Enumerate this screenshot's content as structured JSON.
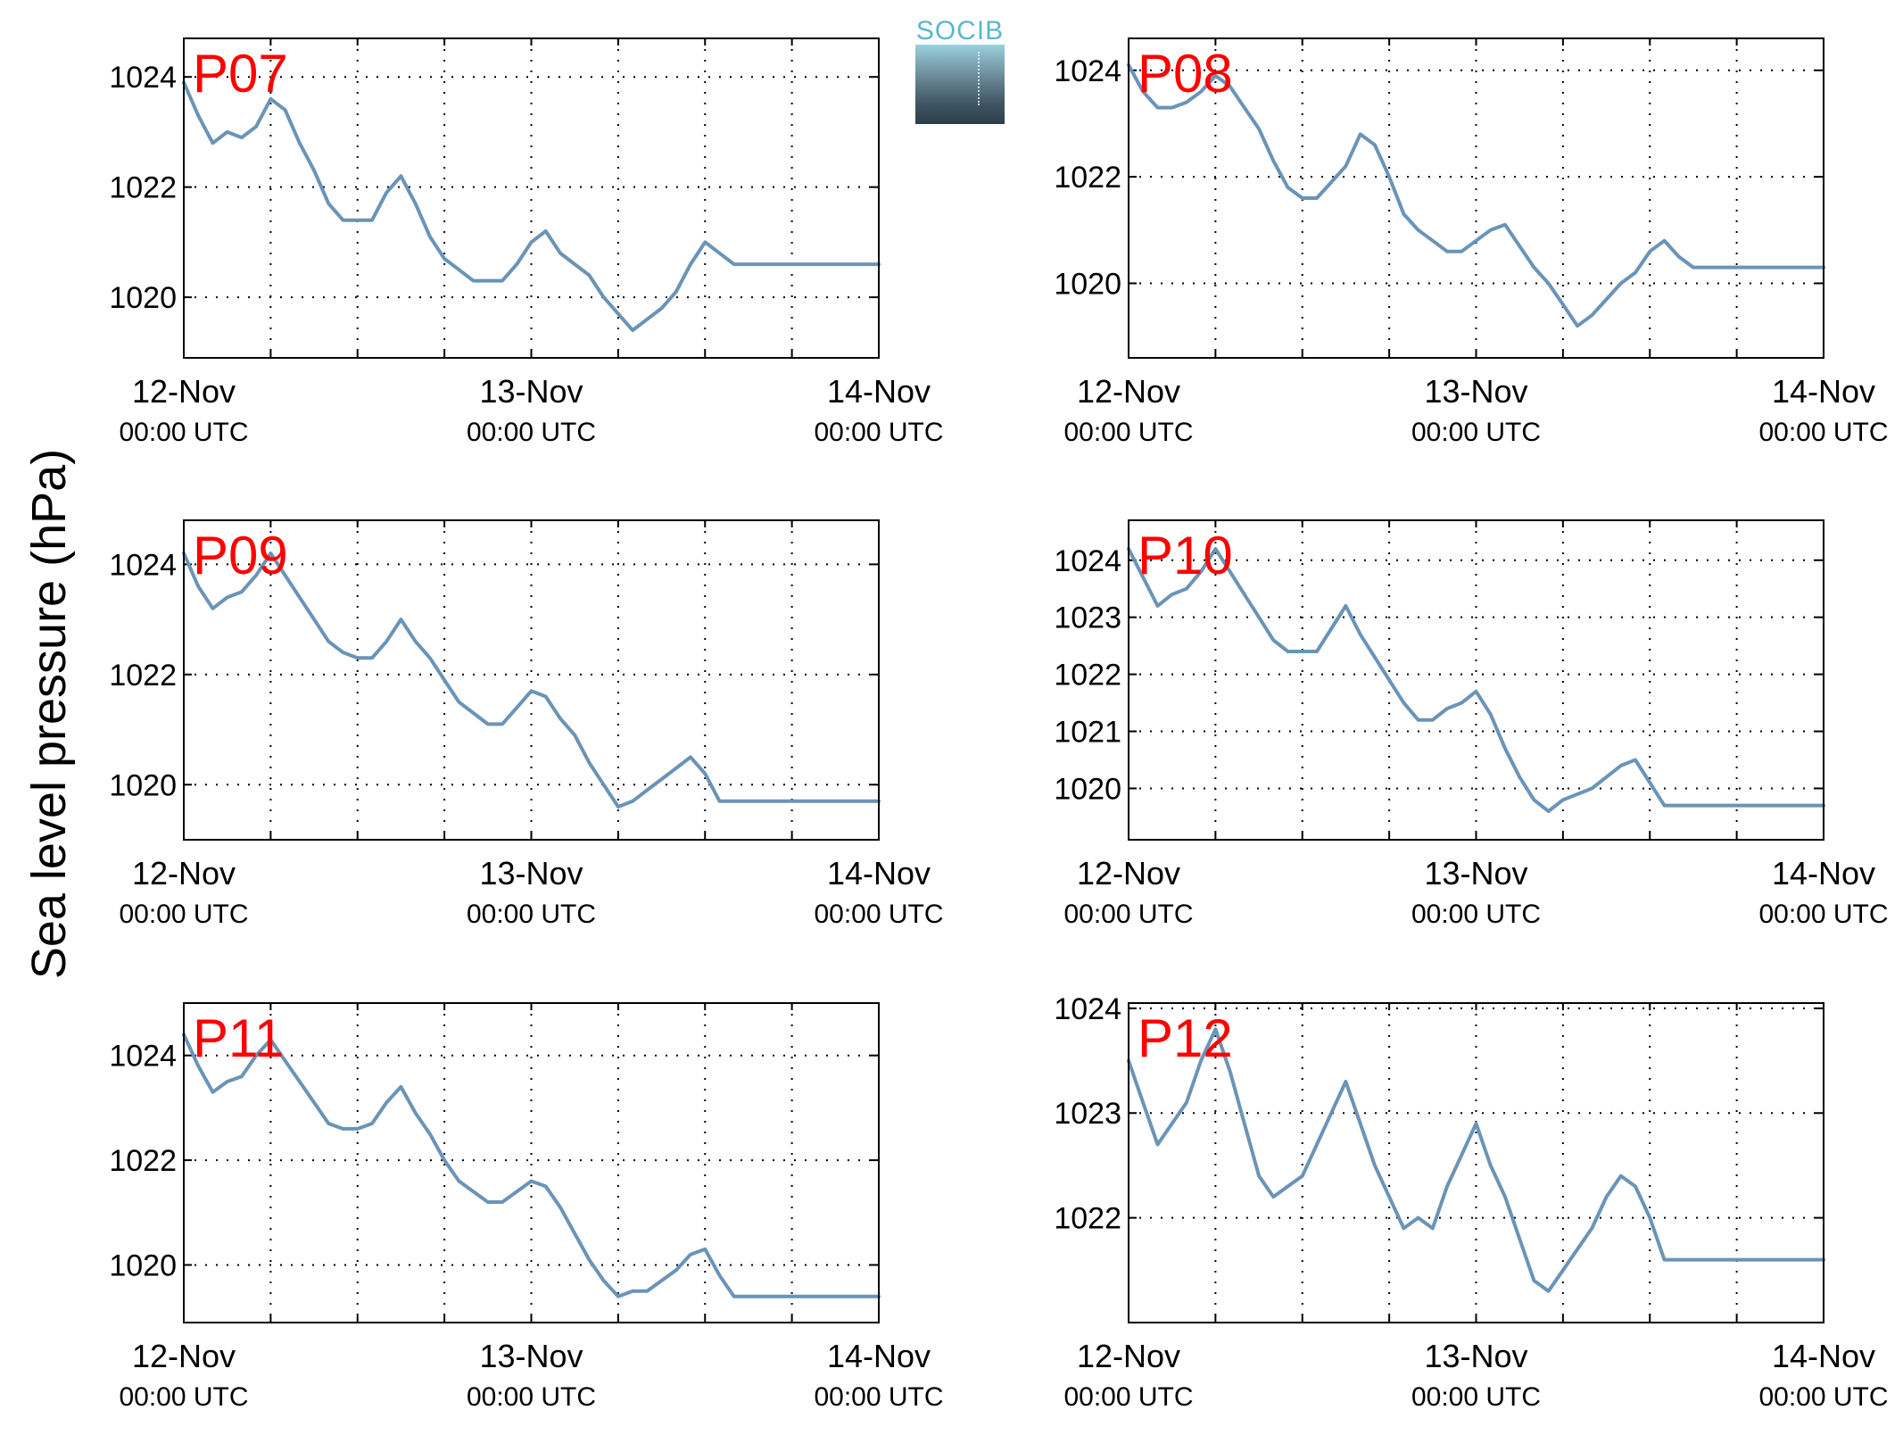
{
  "figure": {
    "ylabel": "Sea level pressure (hPa)",
    "logo_text": "SOCIB",
    "line_color": "#6a94b7",
    "station_label_color": "#ff0000"
  },
  "chart_data": [
    {
      "type": "line",
      "station": "P07",
      "xlim": [
        0,
        48
      ],
      "ylim": [
        1018.9,
        1024.7
      ],
      "yticks": [
        1020,
        1022,
        1024
      ],
      "xticks": [
        0,
        24,
        48
      ],
      "xticklabels": [
        [
          "12-Nov",
          "00:00 UTC"
        ],
        [
          "13-Nov",
          "00:00 UTC"
        ],
        [
          "14-Nov",
          "00:00 UTC"
        ]
      ],
      "grid": true,
      "x": [
        0,
        1,
        2,
        3,
        4,
        5,
        6,
        7,
        8,
        9,
        10,
        11,
        12,
        13,
        14,
        15,
        16,
        17,
        18,
        19,
        20,
        21,
        22,
        23,
        24,
        25,
        26,
        27,
        28,
        29,
        30,
        31,
        32,
        33,
        34,
        35,
        36,
        37,
        38,
        39,
        40,
        41,
        42,
        43,
        44,
        45,
        46,
        47,
        48
      ],
      "y": [
        1023.9,
        1023.3,
        1022.8,
        1023.0,
        1022.9,
        1023.1,
        1023.6,
        1023.4,
        1022.8,
        1022.3,
        1021.7,
        1021.4,
        1021.4,
        1021.4,
        1021.9,
        1022.2,
        1021.7,
        1021.1,
        1020.7,
        1020.5,
        1020.3,
        1020.3,
        1020.3,
        1020.6,
        1021.0,
        1021.2,
        1020.8,
        1020.6,
        1020.4,
        1020.0,
        1019.7,
        1019.4,
        1019.6,
        1019.8,
        1020.1,
        1020.6,
        1021.0,
        1020.8,
        1020.6,
        1020.6,
        1020.6,
        1020.6,
        1020.6,
        1020.6,
        1020.6,
        1020.6,
        1020.6,
        1020.6,
        1020.6
      ]
    },
    {
      "type": "line",
      "station": "P08",
      "xlim": [
        0,
        48
      ],
      "ylim": [
        1018.6,
        1024.6
      ],
      "yticks": [
        1020,
        1022,
        1024
      ],
      "xticks": [
        0,
        24,
        48
      ],
      "xticklabels": [
        [
          "12-Nov",
          "00:00 UTC"
        ],
        [
          "13-Nov",
          "00:00 UTC"
        ],
        [
          "14-Nov",
          "00:00 UTC"
        ]
      ],
      "grid": true,
      "x": [
        0,
        1,
        2,
        3,
        4,
        5,
        6,
        7,
        8,
        9,
        10,
        11,
        12,
        13,
        14,
        15,
        16,
        17,
        18,
        19,
        20,
        21,
        22,
        23,
        24,
        25,
        26,
        27,
        28,
        29,
        30,
        31,
        32,
        33,
        34,
        35,
        36,
        37,
        38,
        39,
        40,
        41,
        42,
        43,
        44,
        45,
        46,
        47,
        48
      ],
      "y": [
        1024.1,
        1023.6,
        1023.3,
        1023.3,
        1023.4,
        1023.6,
        1023.9,
        1023.7,
        1023.3,
        1022.9,
        1022.3,
        1021.8,
        1021.6,
        1021.6,
        1021.9,
        1022.2,
        1022.8,
        1022.6,
        1022.0,
        1021.3,
        1021.0,
        1020.8,
        1020.6,
        1020.6,
        1020.8,
        1021.0,
        1021.1,
        1020.7,
        1020.3,
        1020.0,
        1019.6,
        1019.2,
        1019.4,
        1019.7,
        1020.0,
        1020.2,
        1020.6,
        1020.8,
        1020.5,
        1020.3,
        1020.3,
        1020.3,
        1020.3,
        1020.3,
        1020.3,
        1020.3,
        1020.3,
        1020.3,
        1020.3
      ]
    },
    {
      "type": "line",
      "station": "P09",
      "xlim": [
        0,
        48
      ],
      "ylim": [
        1019.0,
        1024.8
      ],
      "yticks": [
        1020,
        1022,
        1024
      ],
      "xticks": [
        0,
        24,
        48
      ],
      "xticklabels": [
        [
          "12-Nov",
          "00:00 UTC"
        ],
        [
          "13-Nov",
          "00:00 UTC"
        ],
        [
          "14-Nov",
          "00:00 UTC"
        ]
      ],
      "grid": true,
      "x": [
        0,
        1,
        2,
        3,
        4,
        5,
        6,
        7,
        8,
        9,
        10,
        11,
        12,
        13,
        14,
        15,
        16,
        17,
        18,
        19,
        20,
        21,
        22,
        23,
        24,
        25,
        26,
        27,
        28,
        29,
        30,
        31,
        32,
        33,
        34,
        35,
        36,
        37,
        38,
        39,
        40,
        41,
        42,
        43,
        44,
        45,
        46,
        47,
        48
      ],
      "y": [
        1024.2,
        1023.6,
        1023.2,
        1023.4,
        1023.5,
        1023.8,
        1024.2,
        1023.8,
        1023.4,
        1023.0,
        1022.6,
        1022.4,
        1022.3,
        1022.3,
        1022.6,
        1023.0,
        1022.6,
        1022.3,
        1021.9,
        1021.5,
        1021.3,
        1021.1,
        1021.1,
        1021.4,
        1021.7,
        1021.6,
        1021.2,
        1020.9,
        1020.4,
        1020.0,
        1019.6,
        1019.7,
        1019.9,
        1020.1,
        1020.3,
        1020.5,
        1020.2,
        1019.7,
        1019.7,
        1019.7,
        1019.7,
        1019.7,
        1019.7,
        1019.7,
        1019.7,
        1019.7,
        1019.7,
        1019.7,
        1019.7
      ]
    },
    {
      "type": "line",
      "station": "P10",
      "xlim": [
        0,
        48
      ],
      "ylim": [
        1019.1,
        1024.7
      ],
      "yticks": [
        1020,
        1021,
        1022,
        1023,
        1024
      ],
      "xticks": [
        0,
        24,
        48
      ],
      "xticklabels": [
        [
          "12-Nov",
          "00:00 UTC"
        ],
        [
          "13-Nov",
          "00:00 UTC"
        ],
        [
          "14-Nov",
          "00:00 UTC"
        ]
      ],
      "grid": true,
      "x": [
        0,
        1,
        2,
        3,
        4,
        5,
        6,
        7,
        8,
        9,
        10,
        11,
        12,
        13,
        14,
        15,
        16,
        17,
        18,
        19,
        20,
        21,
        22,
        23,
        24,
        25,
        26,
        27,
        28,
        29,
        30,
        31,
        32,
        33,
        34,
        35,
        36,
        37,
        38,
        39,
        40,
        41,
        42,
        43,
        44,
        45,
        46,
        47,
        48
      ],
      "y": [
        1024.2,
        1023.7,
        1023.2,
        1023.4,
        1023.5,
        1023.8,
        1024.2,
        1023.8,
        1023.4,
        1023.0,
        1022.6,
        1022.4,
        1022.4,
        1022.4,
        1022.8,
        1023.2,
        1022.7,
        1022.3,
        1021.9,
        1021.5,
        1021.2,
        1021.2,
        1021.4,
        1021.5,
        1021.7,
        1021.3,
        1020.7,
        1020.2,
        1019.8,
        1019.6,
        1019.8,
        1019.9,
        1020.0,
        1020.2,
        1020.4,
        1020.5,
        1020.1,
        1019.7,
        1019.7,
        1019.7,
        1019.7,
        1019.7,
        1019.7,
        1019.7,
        1019.7,
        1019.7,
        1019.7,
        1019.7,
        1019.7
      ]
    },
    {
      "type": "line",
      "station": "P11",
      "xlim": [
        0,
        48
      ],
      "ylim": [
        1018.9,
        1025.0
      ],
      "yticks": [
        1020,
        1022,
        1024
      ],
      "xticks": [
        0,
        24,
        48
      ],
      "xticklabels": [
        [
          "12-Nov",
          "00:00 UTC"
        ],
        [
          "13-Nov",
          "00:00 UTC"
        ],
        [
          "14-Nov",
          "00:00 UTC"
        ]
      ],
      "grid": true,
      "x": [
        0,
        1,
        2,
        3,
        4,
        5,
        6,
        7,
        8,
        9,
        10,
        11,
        12,
        13,
        14,
        15,
        16,
        17,
        18,
        19,
        20,
        21,
        22,
        23,
        24,
        25,
        26,
        27,
        28,
        29,
        30,
        31,
        32,
        33,
        34,
        35,
        36,
        37,
        38,
        39,
        40,
        41,
        42,
        43,
        44,
        45,
        46,
        47,
        48
      ],
      "y": [
        1024.4,
        1023.8,
        1023.3,
        1023.5,
        1023.6,
        1024.0,
        1024.3,
        1023.9,
        1023.5,
        1023.1,
        1022.7,
        1022.6,
        1022.6,
        1022.7,
        1023.1,
        1023.4,
        1022.9,
        1022.5,
        1022.0,
        1021.6,
        1021.4,
        1021.2,
        1021.2,
        1021.4,
        1021.6,
        1021.5,
        1021.1,
        1020.6,
        1020.1,
        1019.7,
        1019.4,
        1019.5,
        1019.5,
        1019.7,
        1019.9,
        1020.2,
        1020.3,
        1019.8,
        1019.4,
        1019.4,
        1019.4,
        1019.4,
        1019.4,
        1019.4,
        1019.4,
        1019.4,
        1019.4,
        1019.4,
        1019.4
      ]
    },
    {
      "type": "line",
      "station": "P12",
      "xlim": [
        0,
        48
      ],
      "ylim": [
        1021.0,
        1024.05
      ],
      "yticks": [
        1022,
        1023,
        1024
      ],
      "xticks": [
        0,
        24,
        48
      ],
      "xticklabels": [
        [
          "12-Nov",
          "00:00 UTC"
        ],
        [
          "13-Nov",
          "00:00 UTC"
        ],
        [
          "14-Nov",
          "00:00 UTC"
        ]
      ],
      "grid": true,
      "x": [
        0,
        1,
        2,
        3,
        4,
        5,
        6,
        7,
        8,
        9,
        10,
        11,
        12,
        13,
        14,
        15,
        16,
        17,
        18,
        19,
        20,
        21,
        22,
        23,
        24,
        25,
        26,
        27,
        28,
        29,
        30,
        31,
        32,
        33,
        34,
        35,
        36,
        37,
        38,
        39,
        40,
        41,
        42,
        43,
        44,
        45,
        46,
        47,
        48
      ],
      "y": [
        1023.5,
        1023.1,
        1022.7,
        1022.9,
        1023.1,
        1023.5,
        1023.8,
        1023.4,
        1022.9,
        1022.4,
        1022.2,
        1022.3,
        1022.4,
        1022.7,
        1023.0,
        1023.3,
        1022.9,
        1022.5,
        1022.2,
        1021.9,
        1022.0,
        1021.9,
        1022.3,
        1022.6,
        1022.9,
        1022.5,
        1022.2,
        1021.8,
        1021.4,
        1021.3,
        1021.5,
        1021.7,
        1021.9,
        1022.2,
        1022.4,
        1022.3,
        1022.0,
        1021.6,
        1021.6,
        1021.6,
        1021.6,
        1021.6,
        1021.6,
        1021.6,
        1021.6,
        1021.6,
        1021.6,
        1021.6,
        1021.6
      ]
    }
  ]
}
